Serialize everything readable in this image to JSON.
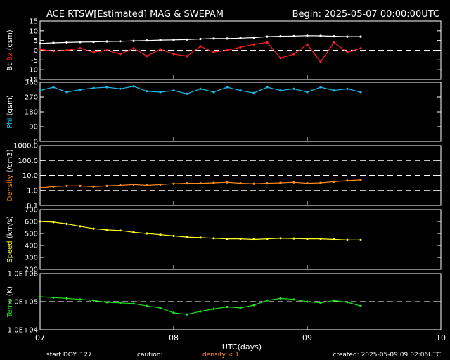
{
  "header": {
    "title": "ACE RTSW[Estimated] MAG & SWEPAM",
    "begin": "Begin: 2025-05-07 00:00:00UTC"
  },
  "footer": {
    "start_doy": "start DOY: 127",
    "caution": "caution:",
    "density_note": "density < 1",
    "created": "created: 2025-05-09 09:02:06UTC"
  },
  "colors": {
    "bt": "#ffffff",
    "bz": "#ff2020",
    "phi": "#20b8e8",
    "density": "#ff8c1a",
    "speed": "#ffff20",
    "temp": "#20e020",
    "caution": "#ff8c1a"
  },
  "chart_data": {
    "type": "scatter",
    "xlabel": "UTC(days)",
    "x_ticks": [
      "07",
      "08",
      "09",
      "10"
    ],
    "xlim": [
      0,
      3
    ],
    "panels": [
      {
        "id": "mag",
        "ylabel_parts": [
          {
            "text": "Bt",
            "color": "#ffffff"
          },
          {
            "text": "Bz",
            "color": "#ff2020"
          },
          {
            "text": "(gsm)",
            "color": "#ffffff"
          }
        ],
        "ylim": [
          -15,
          15
        ],
        "scale": "linear",
        "ticks": [
          "15",
          "10",
          "5",
          "0",
          "-5",
          "-10",
          "-15"
        ],
        "tick_values": [
          15,
          10,
          5,
          0,
          -5,
          -10,
          -15
        ],
        "dashed_at": [
          0
        ],
        "series": [
          {
            "name": "Bt",
            "color": "#ffffff",
            "x": [
              0,
              0.1,
              0.2,
              0.3,
              0.4,
              0.5,
              0.6,
              0.7,
              0.8,
              0.9,
              1.0,
              1.1,
              1.2,
              1.3,
              1.4,
              1.5,
              1.6,
              1.7,
              1.8,
              1.9,
              2.0,
              2.1,
              2.2,
              2.3,
              2.4
            ],
            "y": [
              3.5,
              3.8,
              4.0,
              4.2,
              4.3,
              4.5,
              4.6,
              4.8,
              5.0,
              5.2,
              5.3,
              5.5,
              5.8,
              6.0,
              6.0,
              6.2,
              6.5,
              7.0,
              7.2,
              7.3,
              7.5,
              7.4,
              7.2,
              7.0,
              7.0
            ]
          },
          {
            "name": "Bz",
            "color": "#ff2020",
            "x": [
              0,
              0.1,
              0.2,
              0.3,
              0.4,
              0.5,
              0.6,
              0.7,
              0.8,
              0.9,
              1.0,
              1.1,
              1.2,
              1.3,
              1.4,
              1.5,
              1.6,
              1.7,
              1.8,
              1.9,
              2.0,
              2.1,
              2.2,
              2.3,
              2.4
            ],
            "y": [
              0.5,
              -0.5,
              0.0,
              1.0,
              -1.0,
              0.0,
              -2.0,
              1.0,
              -3.0,
              0.5,
              -2.0,
              -3.0,
              2.0,
              -1.0,
              0.0,
              1.5,
              3.0,
              4.0,
              -4.0,
              -2.0,
              3.0,
              -6.0,
              4.0,
              -1.0,
              1.0
            ]
          }
        ]
      },
      {
        "id": "phi",
        "ylabel_parts": [
          {
            "text": "Phi",
            "color": "#20b8e8"
          },
          {
            "text": "(gsm)",
            "color": "#ffffff"
          }
        ],
        "ylim": [
          0,
          360
        ],
        "scale": "linear",
        "ticks": [
          "360",
          "270",
          "180",
          "90",
          "0"
        ],
        "tick_values": [
          360,
          270,
          180,
          90,
          0
        ],
        "dashed_at": [],
        "series": [
          {
            "name": "Phi",
            "color": "#20b8e8",
            "x": [
              0,
              0.1,
              0.2,
              0.3,
              0.4,
              0.5,
              0.6,
              0.7,
              0.8,
              0.9,
              1.0,
              1.1,
              1.2,
              1.3,
              1.4,
              1.5,
              1.6,
              1.7,
              1.8,
              1.9,
              2.0,
              2.1,
              2.2,
              2.3,
              2.4
            ],
            "y": [
              310,
              330,
              300,
              315,
              325,
              330,
              320,
              335,
              305,
              300,
              310,
              290,
              320,
              300,
              330,
              310,
              295,
              330,
              310,
              320,
              300,
              330,
              310,
              320,
              300
            ]
          }
        ]
      },
      {
        "id": "density",
        "ylabel_parts": [
          {
            "text": "Density",
            "color": "#ff8c1a"
          },
          {
            "text": "(/cm3)",
            "color": "#ffffff"
          }
        ],
        "ylim": [
          0.1,
          1000
        ],
        "scale": "log",
        "ticks": [
          "1000.0",
          "100.0",
          "10.0",
          "1.0",
          "0.1"
        ],
        "tick_values": [
          1000,
          100,
          10,
          1,
          0.1
        ],
        "dashed_at": [
          100,
          10,
          1
        ],
        "series": [
          {
            "name": "Density",
            "color": "#ff8c1a",
            "x": [
              0,
              0.1,
              0.2,
              0.3,
              0.4,
              0.5,
              0.6,
              0.7,
              0.8,
              0.9,
              1.0,
              1.1,
              1.2,
              1.3,
              1.4,
              1.5,
              1.6,
              1.7,
              1.8,
              1.9,
              2.0,
              2.1,
              2.2,
              2.3,
              2.4
            ],
            "y": [
              1.5,
              1.8,
              2.0,
              2.0,
              1.8,
              2.0,
              2.2,
              2.5,
              2.2,
              2.5,
              2.8,
              3.0,
              3.0,
              3.2,
              3.5,
              3.0,
              2.8,
              3.0,
              3.2,
              3.5,
              3.0,
              3.2,
              3.8,
              4.5,
              5.0
            ]
          }
        ]
      },
      {
        "id": "speed",
        "ylabel_parts": [
          {
            "text": "Speed",
            "color": "#ffff20"
          },
          {
            "text": "(km/s)",
            "color": "#ffffff"
          }
        ],
        "ylim": [
          200,
          700
        ],
        "scale": "linear",
        "ticks": [
          "700",
          "600",
          "500",
          "400",
          "300",
          "200"
        ],
        "tick_values": [
          700,
          600,
          500,
          400,
          300,
          200
        ],
        "dashed_at": [],
        "series": [
          {
            "name": "Speed",
            "color": "#ffff20",
            "x": [
              0,
              0.1,
              0.2,
              0.3,
              0.4,
              0.5,
              0.6,
              0.7,
              0.8,
              0.9,
              1.0,
              1.1,
              1.2,
              1.3,
              1.4,
              1.5,
              1.6,
              1.7,
              1.8,
              1.9,
              2.0,
              2.1,
              2.2,
              2.3,
              2.4
            ],
            "y": [
              600,
              595,
              580,
              560,
              540,
              530,
              525,
              510,
              500,
              490,
              480,
              470,
              465,
              460,
              455,
              455,
              450,
              455,
              460,
              458,
              455,
              455,
              450,
              445,
              445
            ]
          }
        ]
      },
      {
        "id": "temp",
        "ylabel_parts": [
          {
            "text": "Temp",
            "color": "#20e020"
          },
          {
            "text": "(K)",
            "color": "#ffffff"
          }
        ],
        "ylim": [
          10000,
          1000000
        ],
        "scale": "log",
        "ticks": [
          "1.0E+06",
          "1.0E+05",
          "1.0E+04"
        ],
        "tick_values": [
          1000000,
          100000,
          10000
        ],
        "dashed_at": [
          100000
        ],
        "series": [
          {
            "name": "Temp",
            "color": "#20e020",
            "x": [
              0,
              0.1,
              0.2,
              0.3,
              0.4,
              0.5,
              0.6,
              0.7,
              0.8,
              0.9,
              1.0,
              1.1,
              1.2,
              1.3,
              1.4,
              1.5,
              1.6,
              1.7,
              1.8,
              1.9,
              2.0,
              2.1,
              2.2,
              2.3,
              2.4
            ],
            "y": [
              150000,
              140000,
              130000,
              120000,
              110000,
              95000,
              90000,
              85000,
              70000,
              60000,
              40000,
              35000,
              45000,
              55000,
              65000,
              60000,
              75000,
              110000,
              130000,
              120000,
              100000,
              90000,
              110000,
              95000,
              70000
            ]
          }
        ]
      }
    ]
  }
}
